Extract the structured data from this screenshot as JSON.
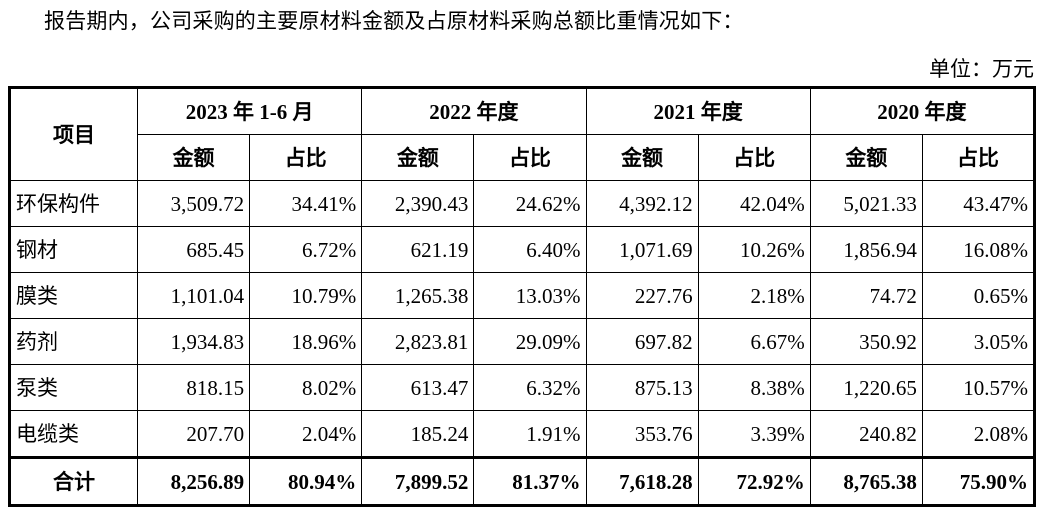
{
  "intro_text": "报告期内，公司采购的主要原材料金额及占原材料采购总额比重情况如下：",
  "unit_label": "单位：万元",
  "table": {
    "corner_header": "项目",
    "periods": [
      "2023 年 1-6 月",
      "2022 年度",
      "2021 年度",
      "2020 年度"
    ],
    "sub_headers": {
      "amount": "金额",
      "ratio": "占比"
    },
    "rows": [
      {
        "label": "环保构件",
        "cells": [
          "3,509.72",
          "34.41%",
          "2,390.43",
          "24.62%",
          "4,392.12",
          "42.04%",
          "5,021.33",
          "43.47%"
        ]
      },
      {
        "label": "钢材",
        "cells": [
          "685.45",
          "6.72%",
          "621.19",
          "6.40%",
          "1,071.69",
          "10.26%",
          "1,856.94",
          "16.08%"
        ]
      },
      {
        "label": "膜类",
        "cells": [
          "1,101.04",
          "10.79%",
          "1,265.38",
          "13.03%",
          "227.76",
          "2.18%",
          "74.72",
          "0.65%"
        ]
      },
      {
        "label": "药剂",
        "cells": [
          "1,934.83",
          "18.96%",
          "2,823.81",
          "29.09%",
          "697.82",
          "6.67%",
          "350.92",
          "3.05%"
        ]
      },
      {
        "label": "泵类",
        "cells": [
          "818.15",
          "8.02%",
          "613.47",
          "6.32%",
          "875.13",
          "8.38%",
          "1,220.65",
          "10.57%"
        ]
      },
      {
        "label": "电缆类",
        "cells": [
          "207.70",
          "2.04%",
          "185.24",
          "1.91%",
          "353.76",
          "3.39%",
          "240.82",
          "2.08%"
        ]
      }
    ],
    "total": {
      "label": "合计",
      "cells": [
        "8,256.89",
        "80.94%",
        "7,899.52",
        "81.37%",
        "7,618.28",
        "72.92%",
        "8,765.38",
        "75.90%"
      ]
    }
  }
}
